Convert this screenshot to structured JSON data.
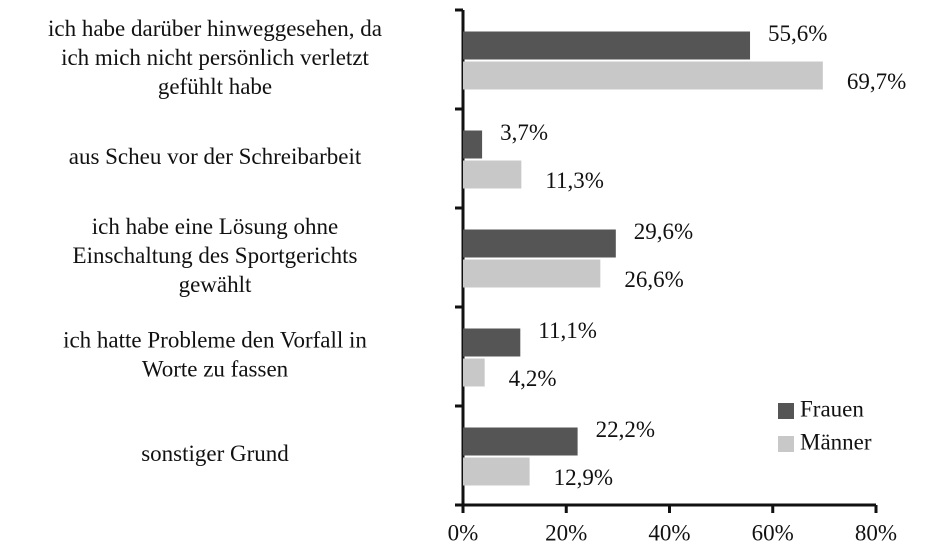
{
  "chart_data": {
    "type": "barh",
    "categories": [
      [
        "ich habe darüber hinweggesehen, da",
        "ich mich nicht persönlich verletzt",
        "gefühlt habe"
      ],
      [
        "aus Scheu vor der Schreibarbeit"
      ],
      [
        "ich habe eine Lösung ohne",
        "Einschaltung des Sportgerichts",
        "gewählt"
      ],
      [
        "ich hatte Probleme den Vorfall in",
        "Worte zu fassen"
      ],
      [
        "sonstiger Grund"
      ]
    ],
    "series": [
      {
        "name": "Frauen",
        "color": "#555555",
        "values": [
          55.6,
          3.7,
          29.6,
          11.1,
          22.2
        ],
        "value_labels": [
          "55,6%",
          "3,7%",
          "29,6%",
          "11,1%",
          "22,2%"
        ]
      },
      {
        "name": "Männer",
        "color": "#c8c8c8",
        "values": [
          69.7,
          11.3,
          26.6,
          4.2,
          12.9
        ],
        "value_labels": [
          "69,7%",
          "11,3%",
          "26,6%",
          "4,2%",
          "12,9%"
        ]
      }
    ],
    "xlim": [
      0,
      80
    ],
    "xticks": [
      {
        "value": 0,
        "label": "0%"
      },
      {
        "value": 20,
        "label": "20%"
      },
      {
        "value": 40,
        "label": "40%"
      },
      {
        "value": 60,
        "label": "60%"
      },
      {
        "value": 80,
        "label": "80%"
      }
    ],
    "legend": "bottom-right"
  }
}
